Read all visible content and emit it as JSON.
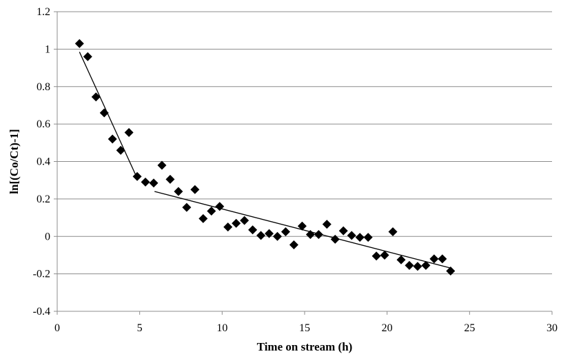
{
  "chart_data": {
    "type": "scatter",
    "title": "",
    "xlabel": "Time on stream (h)",
    "ylabel": "ln[(Co/Ct)-1]",
    "xlim": [
      0,
      30
    ],
    "ylim": [
      -0.4,
      1.2
    ],
    "xticks": [
      0,
      5,
      10,
      15,
      20,
      25,
      30
    ],
    "yticks": [
      -0.4,
      -0.2,
      0,
      0.2,
      0.4,
      0.6,
      0.8,
      1,
      1.2
    ],
    "xtick_labels": [
      "0",
      "5",
      "10",
      "15",
      "20",
      "25",
      "30"
    ],
    "ytick_labels": [
      "-0.4",
      "-0.2",
      "0",
      "0.2",
      "0.4",
      "0.6",
      "0.8",
      "1",
      "1.2"
    ],
    "grid": "horizontal",
    "legend": "none",
    "marker": "diamond",
    "marker_color": "#000000",
    "series": [
      {
        "points": [
          [
            1.35,
            1.03
          ],
          [
            1.85,
            0.96
          ],
          [
            2.35,
            0.745
          ],
          [
            2.85,
            0.66
          ],
          [
            3.35,
            0.52
          ],
          [
            3.85,
            0.46
          ],
          [
            4.35,
            0.555
          ],
          [
            4.85,
            0.32
          ],
          [
            5.35,
            0.29
          ],
          [
            5.85,
            0.285
          ],
          [
            6.35,
            0.38
          ],
          [
            6.85,
            0.305
          ],
          [
            7.35,
            0.24
          ],
          [
            7.85,
            0.155
          ],
          [
            8.35,
            0.25
          ],
          [
            8.85,
            0.095
          ],
          [
            9.35,
            0.135
          ],
          [
            9.85,
            0.16
          ],
          [
            10.35,
            0.05
          ],
          [
            10.85,
            0.07
          ],
          [
            11.35,
            0.085
          ],
          [
            11.85,
            0.035
          ],
          [
            12.35,
            0.005
          ],
          [
            12.85,
            0.015
          ],
          [
            13.35,
            0.0
          ],
          [
            13.85,
            0.025
          ],
          [
            14.35,
            -0.045
          ],
          [
            14.85,
            0.055
          ],
          [
            15.35,
            0.01
          ],
          [
            15.85,
            0.01
          ],
          [
            16.35,
            0.065
          ],
          [
            16.85,
            -0.015
          ],
          [
            17.35,
            0.03
          ],
          [
            17.85,
            0.005
          ],
          [
            18.35,
            -0.005
          ],
          [
            18.85,
            -0.005
          ],
          [
            19.35,
            -0.105
          ],
          [
            19.85,
            -0.1
          ],
          [
            20.35,
            0.025
          ],
          [
            20.85,
            -0.125
          ],
          [
            21.35,
            -0.155
          ],
          [
            21.85,
            -0.16
          ],
          [
            22.35,
            -0.155
          ],
          [
            22.85,
            -0.12
          ],
          [
            23.35,
            -0.12
          ],
          [
            23.85,
            -0.185
          ]
        ]
      }
    ],
    "trend_lines": [
      {
        "x": [
          1.35,
          4.8
        ],
        "y": [
          0.985,
          0.32
        ]
      },
      {
        "x": [
          5.9,
          23.9
        ],
        "y": [
          0.24,
          -0.17
        ]
      }
    ]
  }
}
